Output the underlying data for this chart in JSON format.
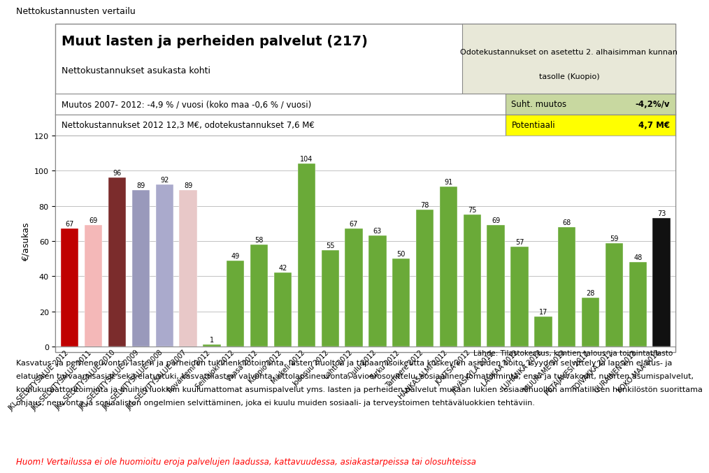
{
  "title_main": "Muut lasten ja perheiden palvelut (217)",
  "title_sub": "Nettokustannukset asukasta kohti",
  "page_title": "Nettokustannusten vertailu",
  "info_box_line1": "Odotekustannukset on asetettu 2. alhaisimman kunnan",
  "info_box_line2": "tasolle (Kuopio)",
  "row1_left": "Muutos 2007- 2012: -4,9 % / vuosi (koko maa -0,6 % / vuosi)",
  "row1_right_label": "Suht. muutos",
  "row1_right_value": "-4,2%/v",
  "row2_left": "Nettokustannukset 2012 12,3 M€, odotekustannukset 7,6 M€",
  "row2_right_label": "Potentiaali",
  "row2_right_value": "4,7 M€",
  "ylabel": "€/asukas",
  "ylim": [
    0,
    120
  ],
  "yticks": [
    0,
    20,
    40,
    60,
    80,
    100,
    120
  ],
  "source": "Lähde: Tilastokeskus, kuntien talous- ja toimintatilasto",
  "footer_warning": "Huom! Vertailussa ei ole huomioitu eroja palvelujen laadussa, kattavuudessa, asiakastarpeissa tai olosuhteissa",
  "description_lines": [
    "Kasvatus- ja perheneuvonta, lasten ja perheiden tukihenkilötoiminta, lasten huoltoa ja tapaamisoikeutta koskevien asioiden hoito, isyyden selvittely ja lapsen elatus- ja",
    "elatuksen turvaamisasiat sekä elatustuki, kasvattilasten valvonta, ottolapsineuvonta, avioerosovittelu, sosiaalinen lomatoiminta, ensi- ja turvakodit, nuorten asumispalvelut,",
    "koulukuraattoritoiminta ja muihin luokkiin kuulumattomat asumispalvelut yms. lasten ja perheiden palvelut mukaan lukien sosiaalihuollon ammatillisen henkilöstön suorittama",
    "ohjaus, neuvonta ja sosiaalisten ongelmien selvittäminen, joka ei kuulu muiden sosiaali- ja terveystoimen tehtäväluokkien tehtäviin."
  ],
  "categories": [
    "JKL SELVITYSALUE 2012",
    "JKL SELVITYSALUE 2011",
    "JKL SELVITYSALUE 2010",
    "JKL SELVITYSALUE 2009",
    "JKL SELVITYSALUE 2008",
    "JKL SELVITYSALUE 2007",
    "Rovaniemi 2012",
    "Seinäjoki 2012",
    "Vaasa 2012",
    "Kuopio 2012",
    "Mikkeli 2012",
    "Joensuu 2012",
    "Lahti 2012",
    "Oulu 2012",
    "Turku 2012",
    "Tampere 2012",
    "HANKASALMI 2012",
    "JOUTSA 2012",
    "JYVÄSKYLÄ 2012",
    "LAUKAA 2012",
    "LUHANKA 2012",
    "MUURAME 2012",
    "PETÄJÄVESI 2012",
    "TOIVAKKA 2012",
    "UURAINEN 2012",
    "KOKO MAA 2012"
  ],
  "values": [
    67,
    69,
    96,
    89,
    92,
    89,
    1,
    49,
    58,
    42,
    104,
    55,
    67,
    63,
    50,
    78,
    91,
    75,
    69,
    57,
    17,
    68,
    28,
    59,
    48,
    73
  ],
  "bar_colors": [
    "#c00000",
    "#f4b8b8",
    "#7b2c2c",
    "#9999bb",
    "#aaaacc",
    "#e8c8c8",
    "#6aaa38",
    "#6aaa38",
    "#6aaa38",
    "#6aaa38",
    "#6aaa38",
    "#6aaa38",
    "#6aaa38",
    "#6aaa38",
    "#6aaa38",
    "#6aaa38",
    "#6aaa38",
    "#6aaa38",
    "#6aaa38",
    "#6aaa38",
    "#6aaa38",
    "#6aaa38",
    "#6aaa38",
    "#6aaa38",
    "#6aaa38",
    "#111111"
  ],
  "info_box_bg": "#e8e8d8",
  "row1_right_bg": "#c8d8a0",
  "row2_right_bg": "#ffff00",
  "border_color": "#888888"
}
